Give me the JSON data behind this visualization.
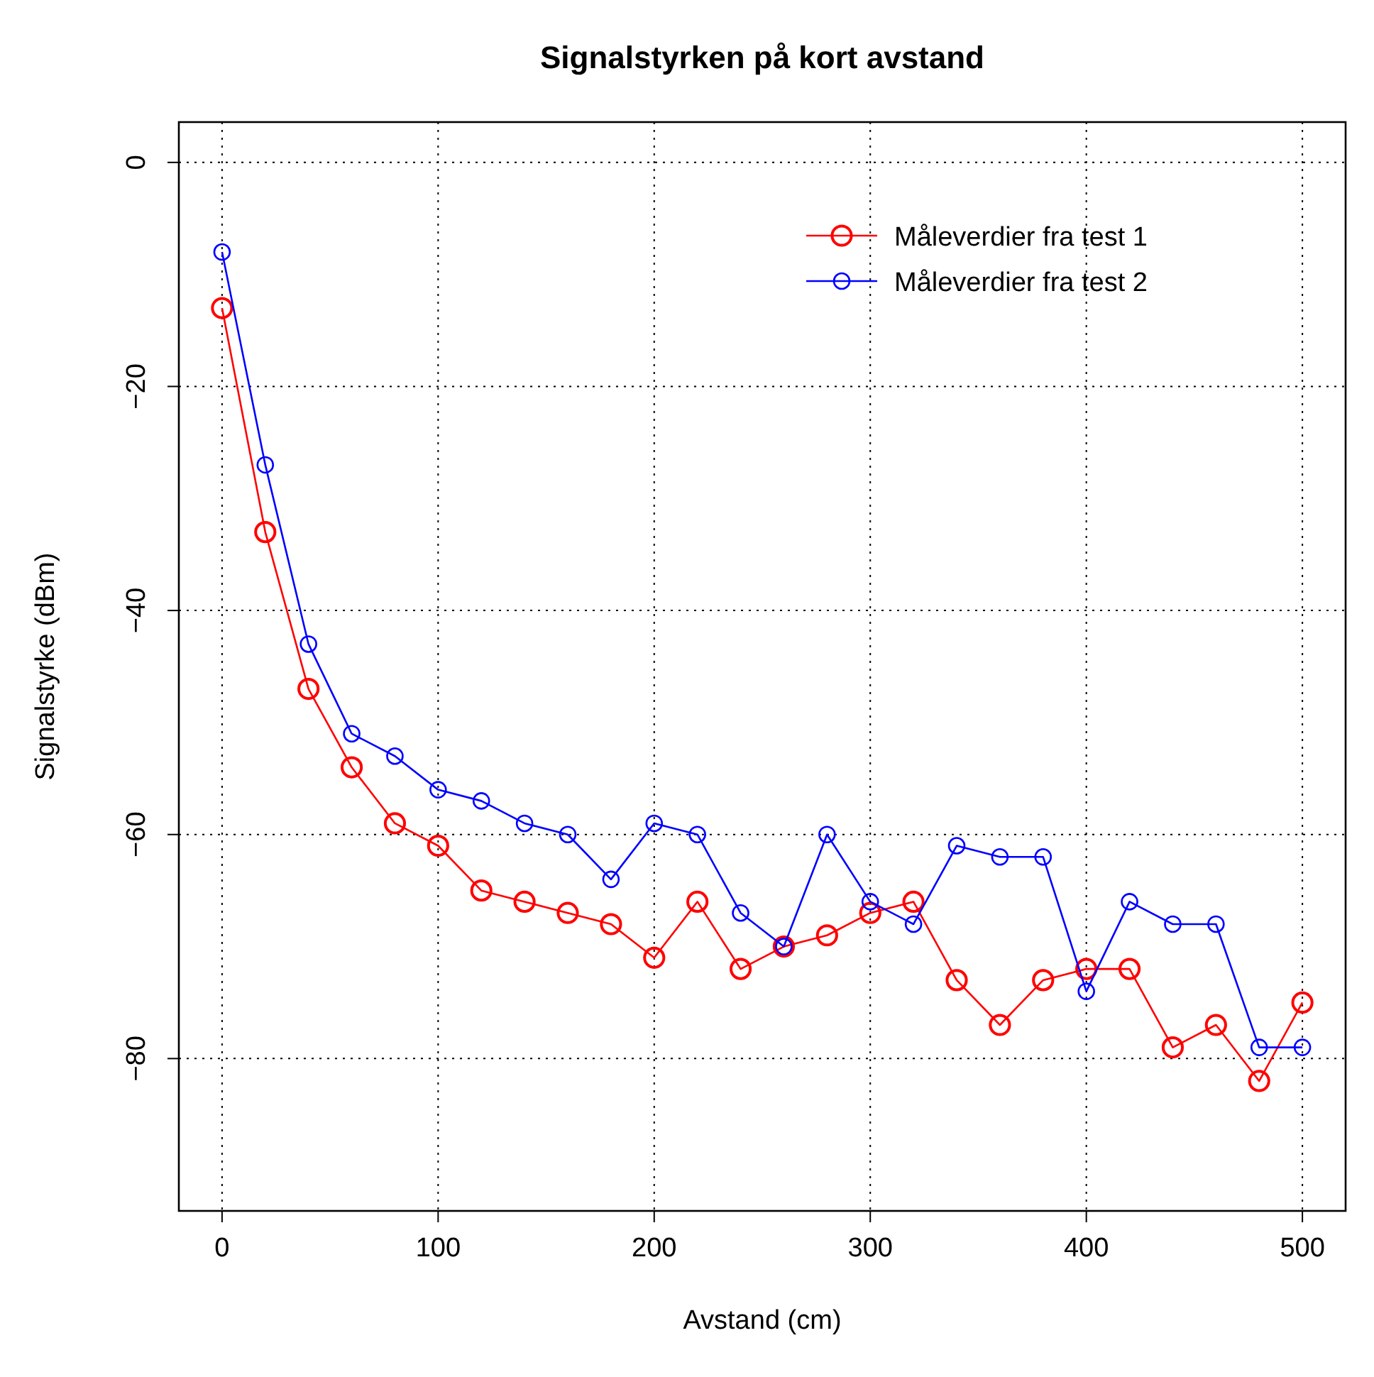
{
  "chart_data": {
    "type": "line",
    "title": "Signalstyrken på kort avstand",
    "xlabel": "Avstand (cm)",
    "ylabel": "Signalstyrke (dBm)",
    "x": [
      0,
      20,
      40,
      60,
      80,
      100,
      120,
      140,
      160,
      180,
      200,
      220,
      240,
      260,
      280,
      300,
      320,
      340,
      360,
      380,
      400,
      420,
      440,
      460,
      480,
      500
    ],
    "series": [
      {
        "name": "Måleverdier fra test 1",
        "color": "#ff0000",
        "values": [
          -13,
          -33,
          -47,
          -54,
          -59,
          -61,
          -65,
          -66,
          -67,
          -68,
          -71,
          -66,
          -72,
          -70,
          -69,
          -67,
          -66,
          -73,
          -77,
          -73,
          -72,
          -72,
          -79,
          -77,
          -82,
          -75
        ]
      },
      {
        "name": "Måleverdier fra test 2",
        "color": "#0000ff",
        "values": [
          -8,
          -27,
          -43,
          -51,
          -53,
          -56,
          -57,
          -59,
          -60,
          -64,
          -59,
          -60,
          -67,
          -70,
          -60,
          -66,
          -68,
          -61,
          -62,
          -62,
          -74,
          -66,
          -68,
          -68,
          -79,
          -79
        ]
      }
    ],
    "xlim": [
      -20,
      520
    ],
    "xticks": [
      0,
      100,
      200,
      300,
      400,
      500
    ],
    "ylim": [
      -93.6,
      3.6
    ],
    "yticks": [
      0,
      -20,
      -40,
      -60,
      -80
    ],
    "grid": true,
    "legend": "top right",
    "marker": "circle",
    "line_style": "solid"
  }
}
